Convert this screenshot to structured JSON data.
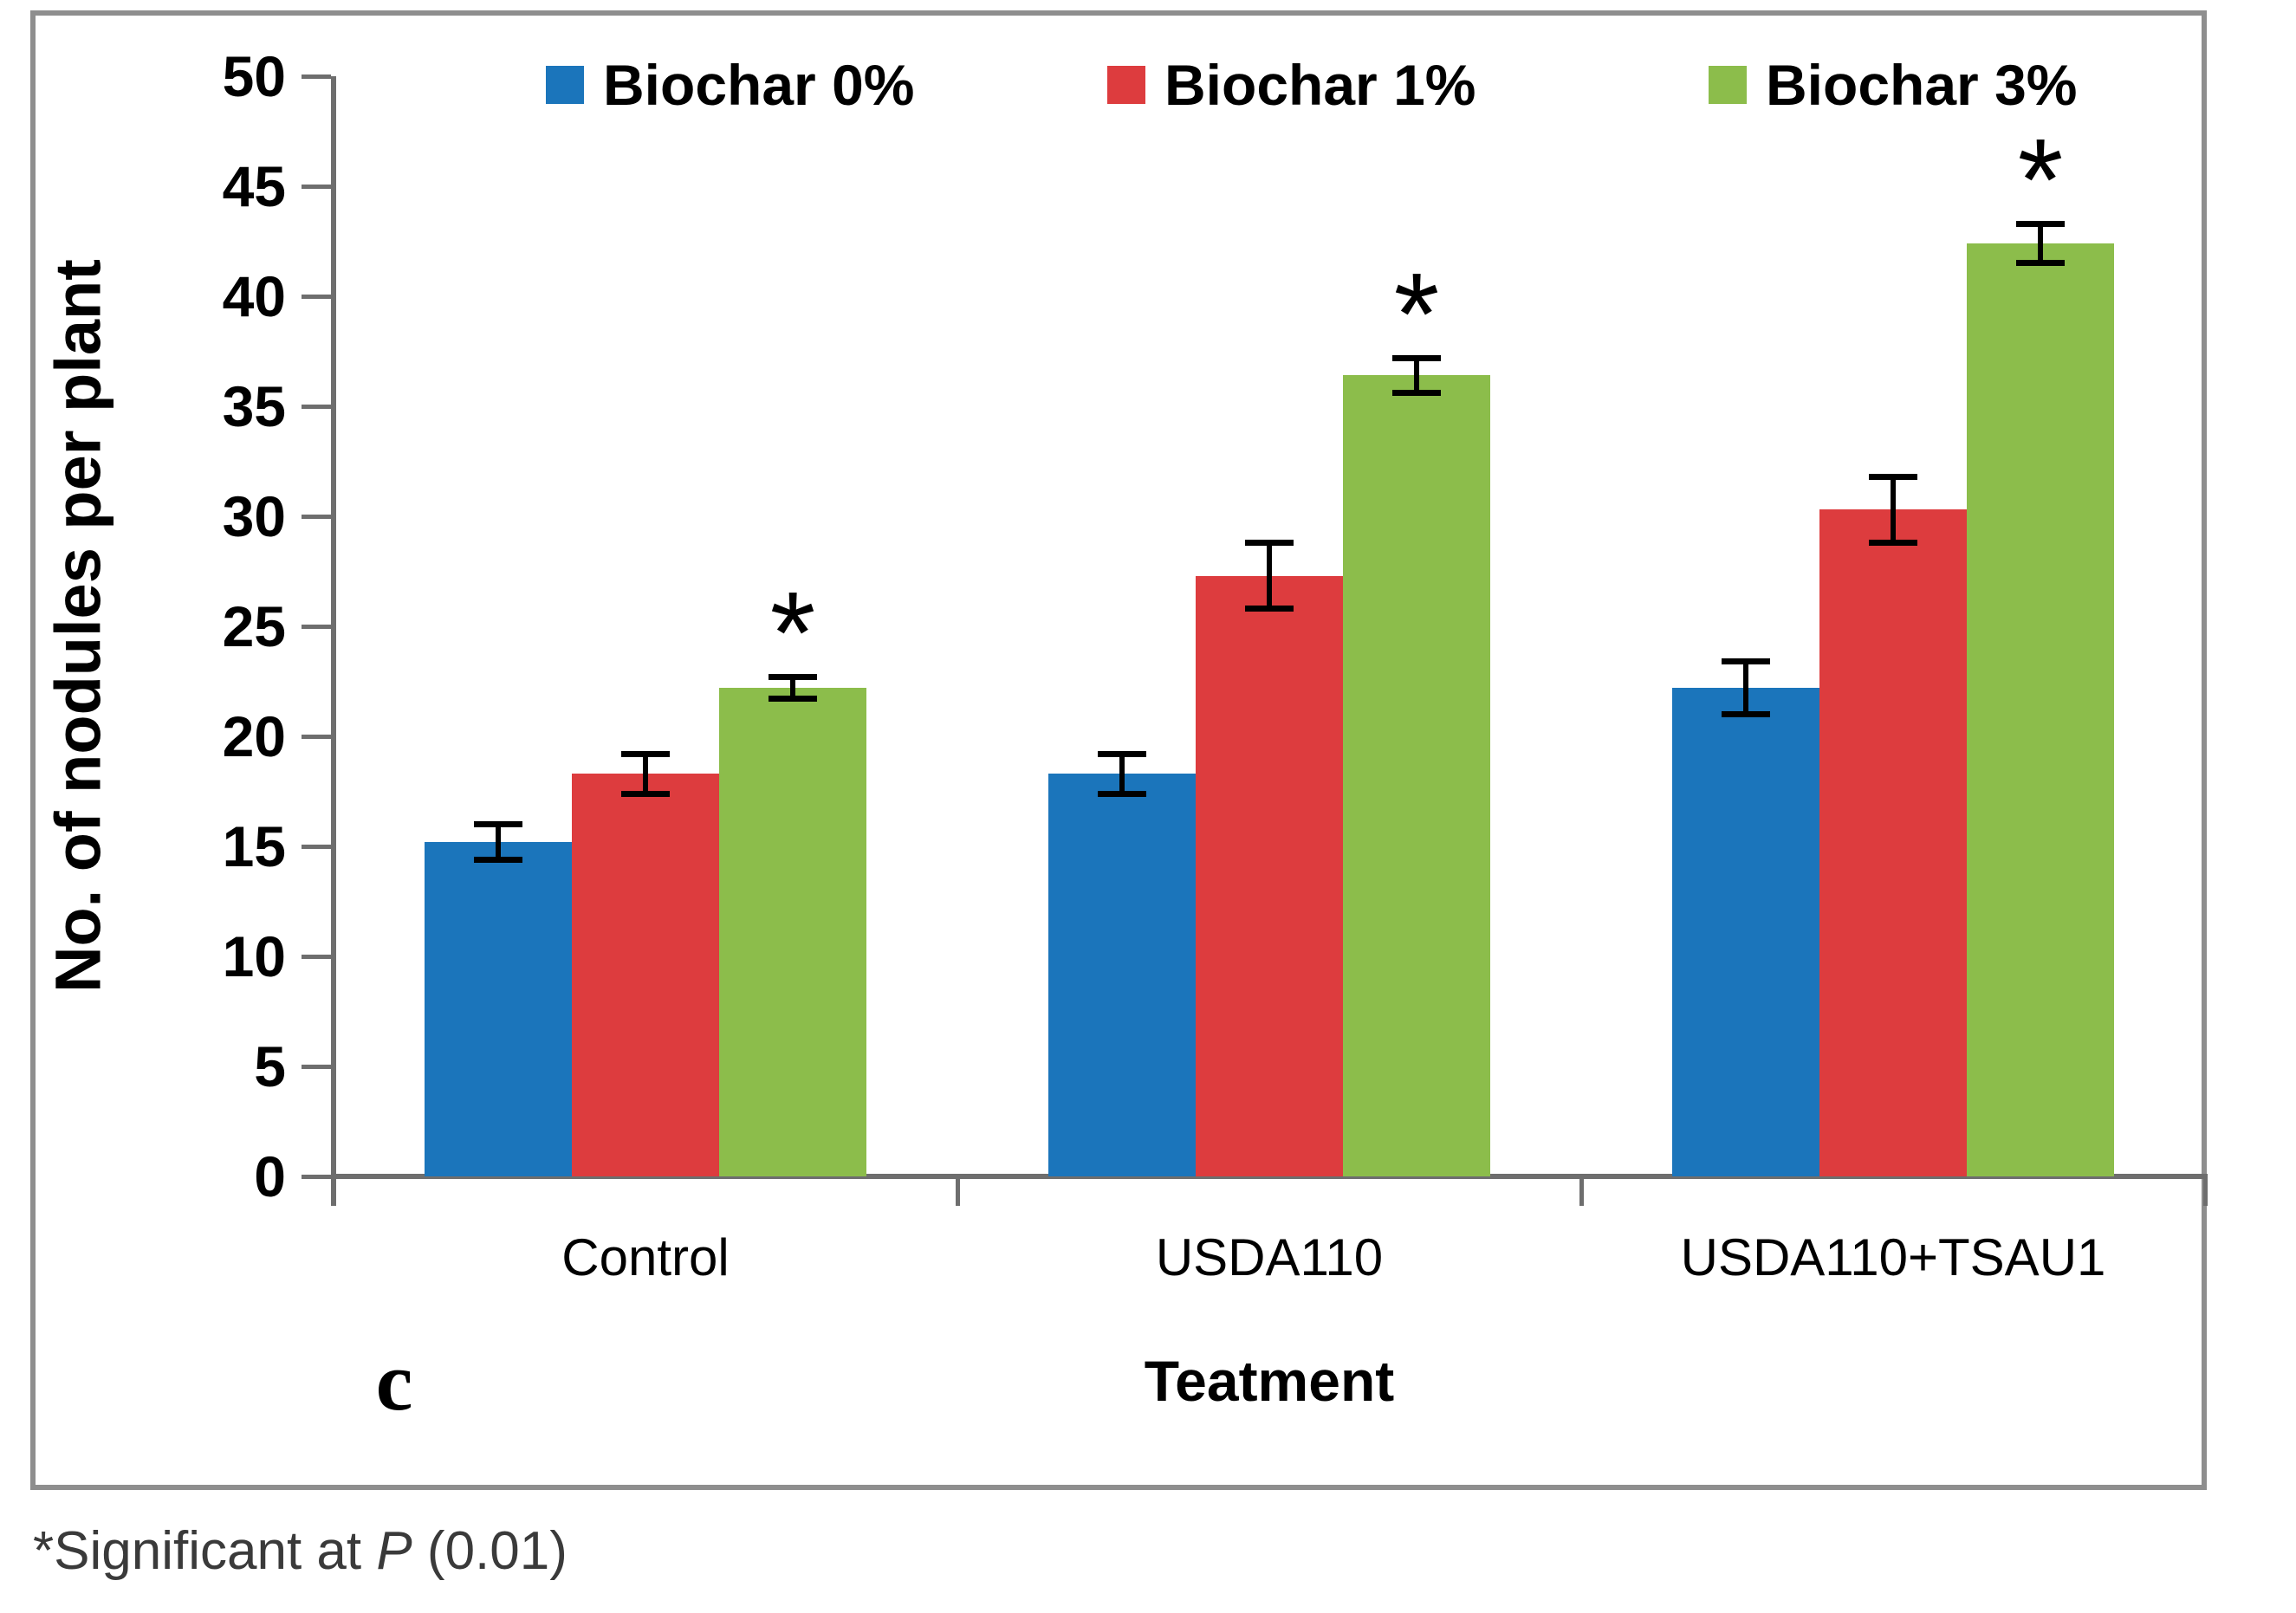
{
  "figure": {
    "panel_label": "c",
    "footnote": {
      "full": "*Significant at P (0.01)",
      "prefix": "*Significant at ",
      "italic": "P",
      "suffix": " (0.01)"
    }
  },
  "chart_data": {
    "type": "bar",
    "title": "",
    "categories": [
      "Control",
      "USDA110",
      "USDA110+TSAU1"
    ],
    "series": [
      {
        "name": "Biochar 0%",
        "color": "#1b75bb",
        "values": [
          15.2,
          18.3,
          22.2
        ],
        "errors": [
          0.8,
          0.9,
          1.2
        ],
        "significant": [
          false,
          false,
          false
        ]
      },
      {
        "name": "Biochar 1%",
        "color": "#dd3c3e",
        "values": [
          18.3,
          27.3,
          30.3
        ],
        "errors": [
          0.9,
          1.5,
          1.5
        ],
        "significant": [
          false,
          false,
          false
        ]
      },
      {
        "name": "Biochar 3%",
        "color": "#8cbd4b",
        "values": [
          22.2,
          36.4,
          42.4
        ],
        "errors": [
          0.5,
          0.8,
          0.9
        ],
        "significant": [
          true,
          true,
          true
        ]
      }
    ],
    "xlabel": "Teatment",
    "ylabel": "No. of nodules per plant",
    "ylim": [
      0,
      50
    ],
    "ytick_step": 5,
    "legend_position": "top-inside",
    "grid": false,
    "significance_marker": "*",
    "axis_color": "#6e6e6e",
    "border_color": "#8e8e8e"
  }
}
